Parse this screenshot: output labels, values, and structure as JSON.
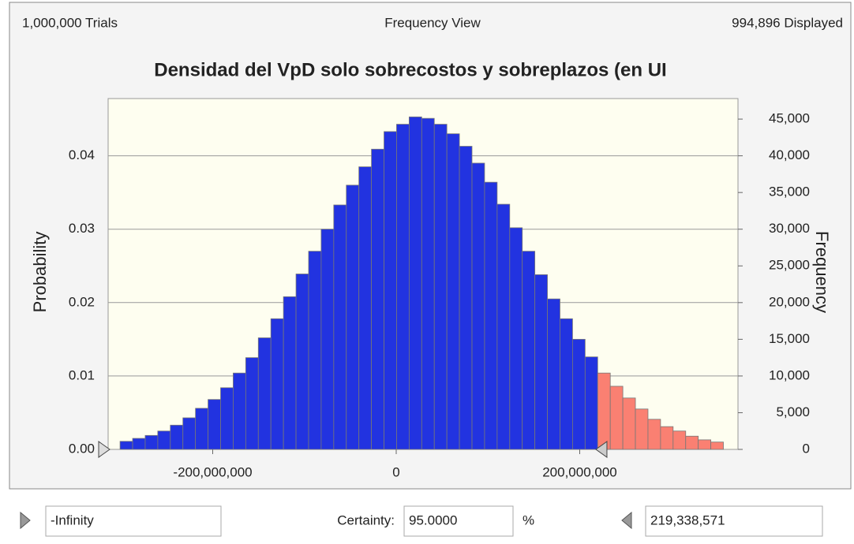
{
  "header": {
    "trials": "1,000,000 Trials",
    "view": "Frequency View",
    "displayed": "994,896 Displayed"
  },
  "chart_data": {
    "type": "histogram",
    "title": "Densidad del VpD solo sobrecostos y sobreplazos (en UI",
    "ylabel": "Probability",
    "y2label": "Frequency",
    "bins": [
      -301000000,
      -287300000,
      -273600000,
      -259900000,
      -246200000,
      -232500000,
      -218800000,
      -205100000,
      -191400000,
      -177700000,
      -164000000,
      -150300000,
      -136600000,
      -122900000,
      -109200000,
      -95500000,
      -81800000,
      -68100000,
      -54400000,
      -40700000,
      -27000000,
      -13300000,
      400000,
      14100000,
      27800000,
      41500000,
      55200000,
      68900000,
      82600000,
      96300000,
      110000000,
      123700000,
      137400000,
      151100000,
      164800000,
      178500000,
      192200000,
      205900000,
      219600000,
      233300000,
      247000000,
      260700000,
      274400000,
      288100000,
      301800000,
      315500000,
      329200000,
      342900000,
      356600000
    ],
    "values": [
      0.0011,
      0.0015,
      0.0019,
      0.0025,
      0.0033,
      0.0043,
      0.0056,
      0.0068,
      0.0084,
      0.0104,
      0.0125,
      0.0152,
      0.0178,
      0.0208,
      0.0239,
      0.027,
      0.03,
      0.0333,
      0.036,
      0.0385,
      0.0409,
      0.0433,
      0.0443,
      0.0453,
      0.0451,
      0.0443,
      0.043,
      0.0413,
      0.039,
      0.0364,
      0.0334,
      0.0302,
      0.027,
      0.0238,
      0.0205,
      0.0178,
      0.015,
      0.0126,
      0.0104,
      0.0086,
      0.007,
      0.0055,
      0.0041,
      0.0031,
      0.0025,
      0.0018,
      0.0013,
      0.001
    ],
    "color": "#2233e0",
    "tail_color": "#fa8072",
    "background": "#fefef0",
    "grid": true,
    "xlim": [
      -314000000,
      372500000
    ],
    "xticks": [
      {
        "value": -200000000,
        "label": "-200,000,000"
      },
      0,
      {
        "value": 200000000,
        "label": "200,000,000"
      }
    ],
    "ylim": [
      0,
      0.0478
    ],
    "yticks": [
      {
        "value": 0,
        "label": "0.00"
      },
      0.01,
      0.02,
      0.03,
      0.04
    ],
    "y2lim": [
      0,
      47800
    ],
    "y2ticks": [
      0,
      {
        "value": 5000,
        "label": "5,000"
      },
      {
        "value": 10000,
        "label": "10,000"
      },
      {
        "value": 15000,
        "label": "15,000"
      },
      {
        "value": 20000,
        "label": "20,000"
      },
      {
        "value": 25000,
        "label": "25,000"
      },
      {
        "value": 30000,
        "label": "30,000"
      },
      {
        "value": 35000,
        "label": "35,000"
      },
      {
        "value": 40000,
        "label": "40,000"
      },
      {
        "value": 45000,
        "label": "45,000"
      }
    ]
  },
  "footer": {
    "left": "-Infinity",
    "certainty_label": "Certainty:",
    "certainty": "95.0000",
    "percent": "%",
    "right": {
      "value": 219338571,
      "label": "219,338,571"
    }
  }
}
